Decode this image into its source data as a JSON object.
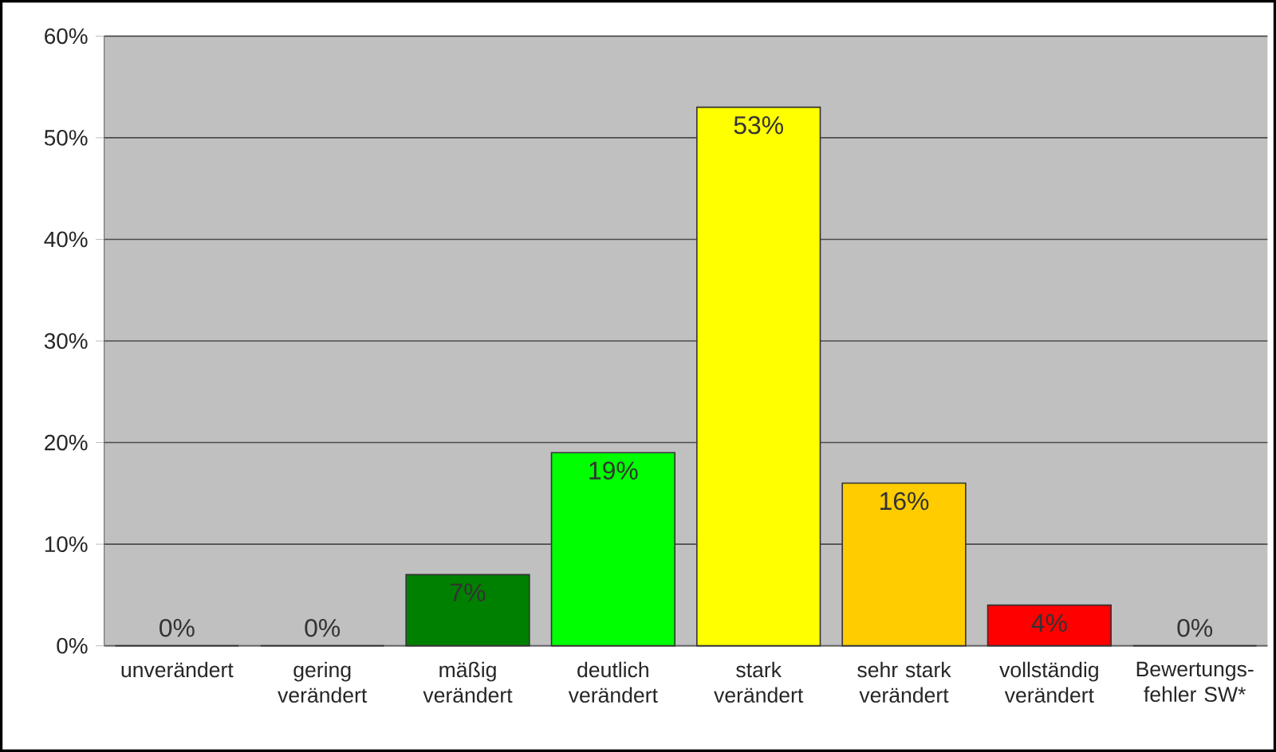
{
  "chart_data": {
    "type": "bar",
    "categories": [
      "unverändert",
      "gering verändert",
      "mäßig verändert",
      "deutlich verändert",
      "stark verändert",
      "sehr stark verändert",
      "vollständig verändert",
      "Bewertungs-fehler SW*"
    ],
    "values": [
      0,
      0,
      7,
      19,
      53,
      16,
      4,
      0
    ],
    "value_labels": [
      "0%",
      "0%",
      "7%",
      "19%",
      "53%",
      "16%",
      "4%",
      "0%"
    ],
    "colors": [
      null,
      null,
      "#008000",
      "#00ff00",
      "#ffff00",
      "#ffcc00",
      "#ff0000",
      "#ffffff"
    ],
    "ylim": [
      0,
      60
    ],
    "yticks": [
      {
        "value": 0,
        "label": "0%"
      },
      {
        "value": 10,
        "label": "10%"
      },
      {
        "value": 20,
        "label": "20%"
      },
      {
        "value": 30,
        "label": "30%"
      },
      {
        "value": 40,
        "label": "40%"
      },
      {
        "value": 50,
        "label": "50%"
      },
      {
        "value": 60,
        "label": "60%"
      }
    ],
    "grid": "y"
  }
}
